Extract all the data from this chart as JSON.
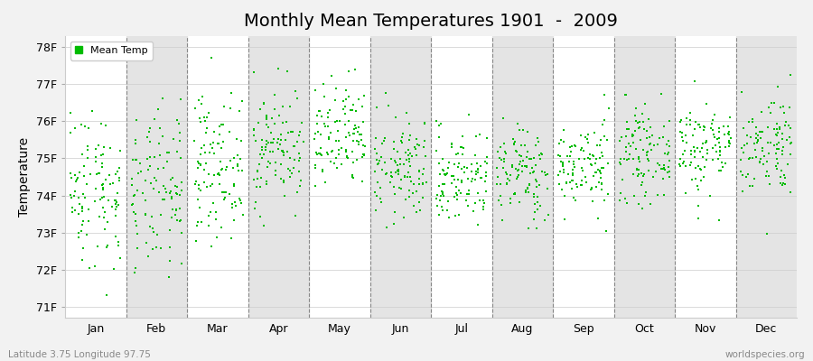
{
  "title": "Monthly Mean Temperatures 1901  -  2009",
  "ylabel": "Temperature",
  "xlabel_months": [
    "Jan",
    "Feb",
    "Mar",
    "Apr",
    "May",
    "Jun",
    "Jul",
    "Aug",
    "Sep",
    "Oct",
    "Nov",
    "Dec"
  ],
  "ytick_labels": [
    "71F",
    "72F",
    "73F",
    "74F",
    "75F",
    "76F",
    "77F",
    "78F"
  ],
  "ytick_values": [
    71,
    72,
    73,
    74,
    75,
    76,
    77,
    78
  ],
  "ylim": [
    70.7,
    78.3
  ],
  "xlim": [
    0,
    12
  ],
  "dot_color": "#00bb00",
  "bg_color": "#f2f2f2",
  "plot_bg_color": "#ffffff",
  "band_color": "#e4e4e4",
  "grid_color": "#888888",
  "title_fontsize": 14,
  "axis_fontsize": 10,
  "tick_fontsize": 9,
  "footer_left": "Latitude 3.75 Longitude 97.75",
  "footer_right": "worldspecies.org",
  "legend_label": "Mean Temp",
  "num_years": 109,
  "month_means": [
    74.2,
    74.0,
    74.8,
    75.3,
    75.5,
    74.7,
    74.5,
    74.6,
    74.8,
    75.1,
    75.3,
    75.4
  ],
  "month_stds": [
    1.1,
    1.1,
    0.95,
    0.8,
    0.75,
    0.7,
    0.65,
    0.65,
    0.6,
    0.6,
    0.65,
    0.7
  ],
  "seed": 42
}
